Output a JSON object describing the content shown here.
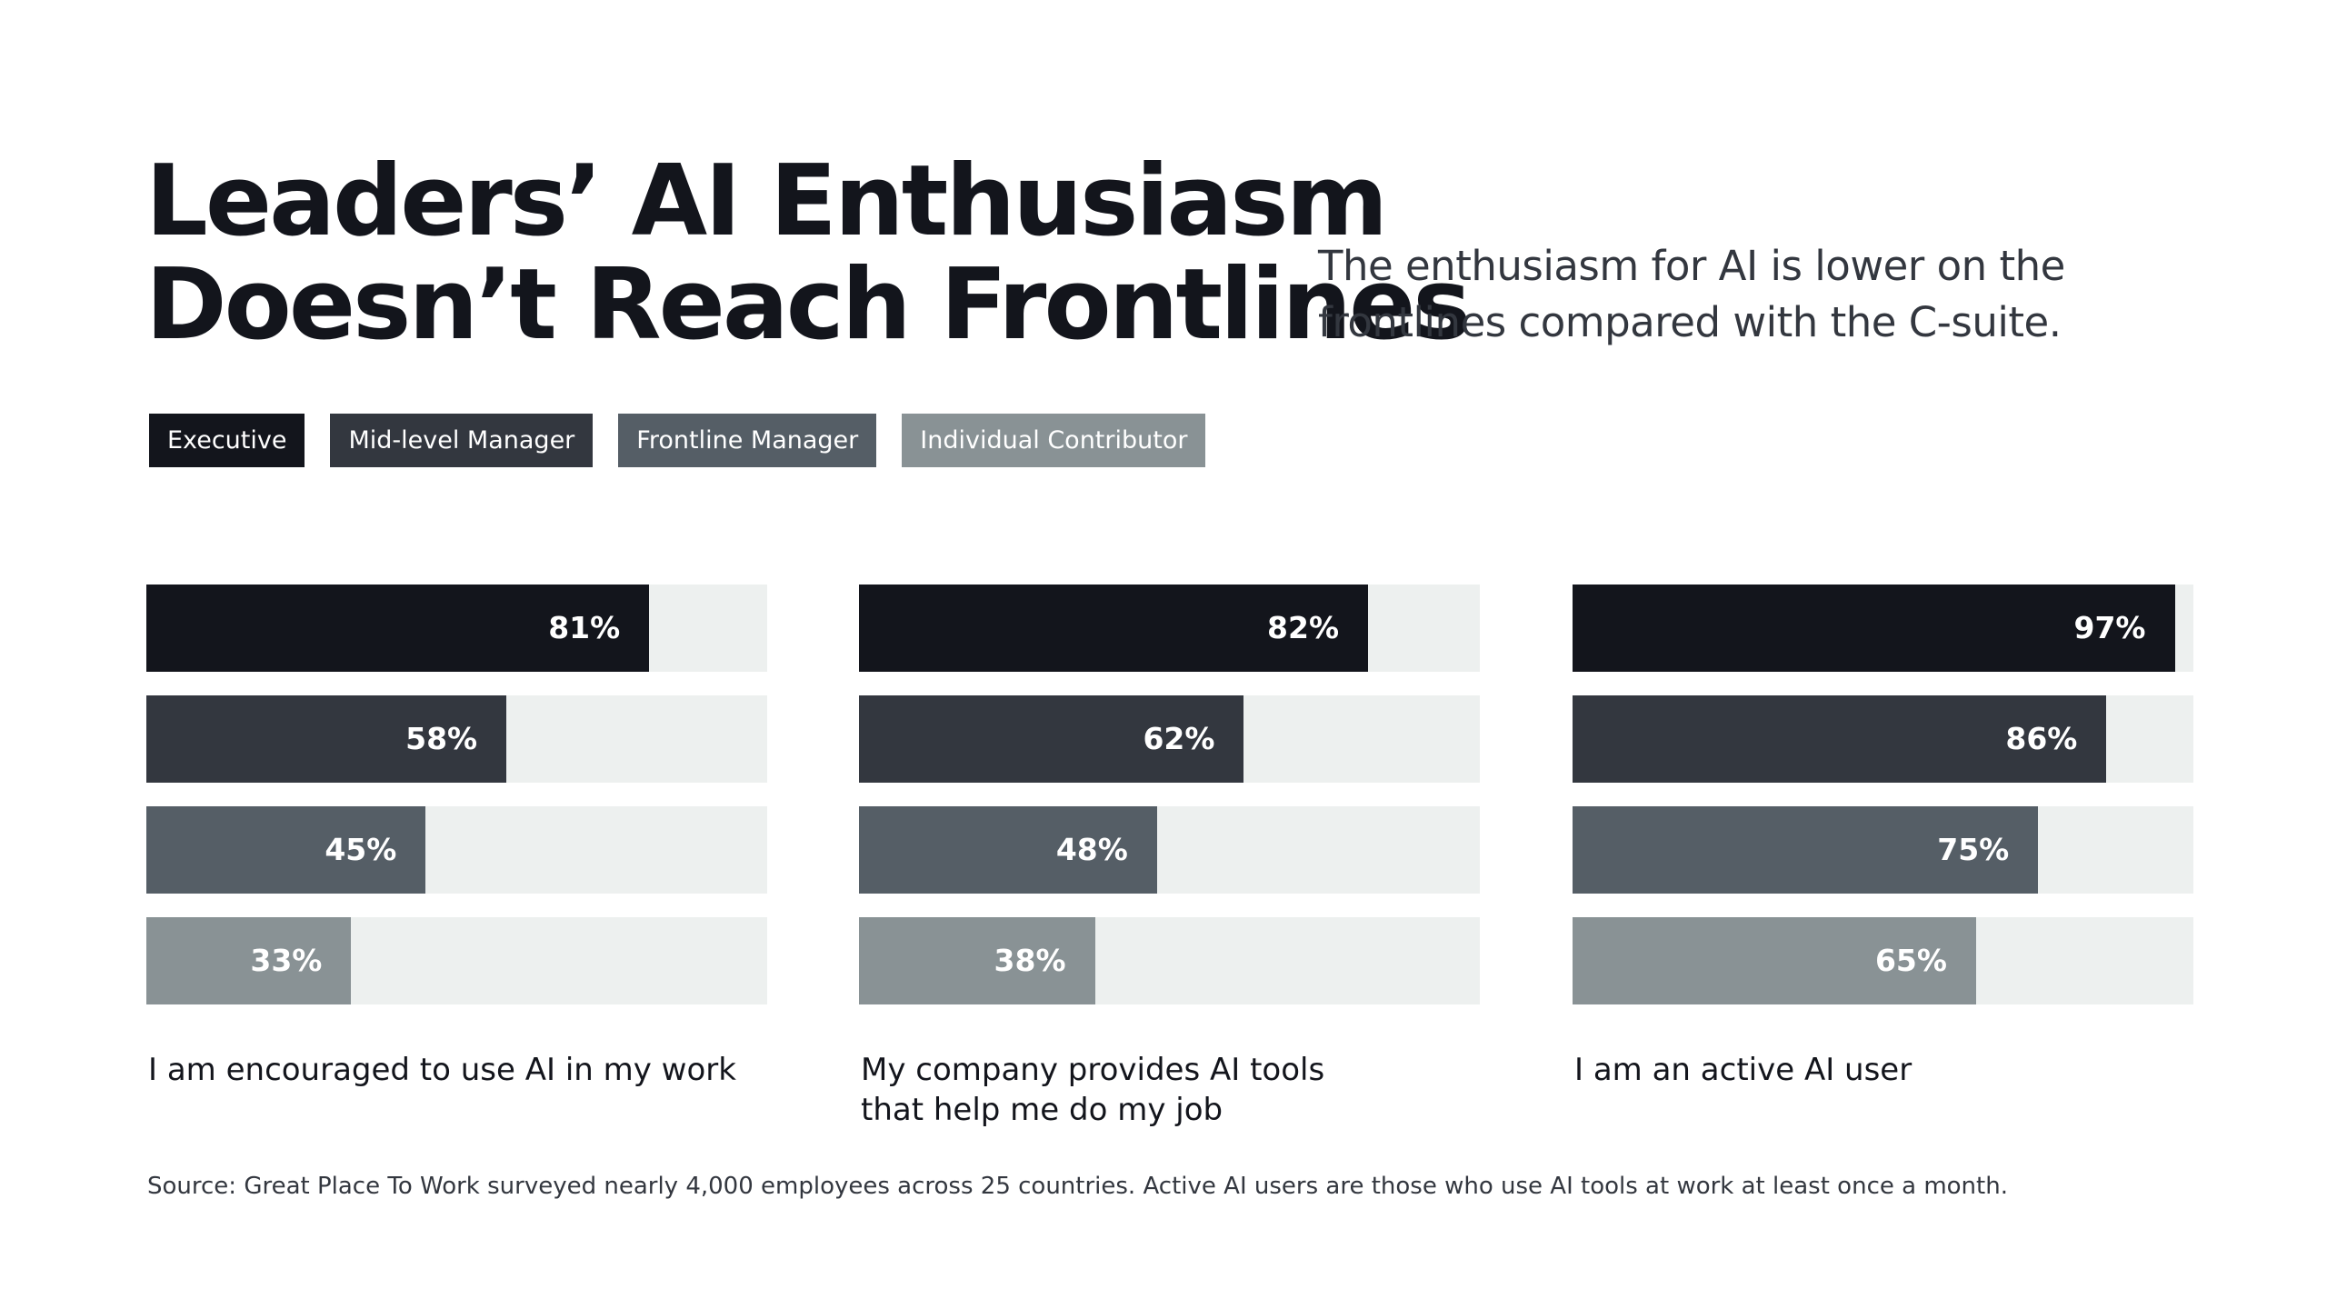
{
  "header": {
    "title_line1": "Leaders’ AI Enthusiasm",
    "title_line2": "Doesn’t Reach Frontlines",
    "subtitle_line1": "The enthusiasm for AI is lower on the",
    "subtitle_line2": "frontlines compared with the C-suite."
  },
  "chart_data": {
    "type": "bar",
    "orientation": "horizontal",
    "xlim": [
      0,
      100
    ],
    "legend_placement": "top-left",
    "track_color": "#edf0ef",
    "series": [
      {
        "name": "Executive",
        "color": "#13151c",
        "values": [
          81,
          82,
          97
        ],
        "labels": [
          "81%",
          "82%",
          "97%"
        ]
      },
      {
        "name": "Mid-level Manager",
        "color": "#33373f",
        "values": [
          58,
          62,
          86
        ],
        "labels": [
          "58%",
          "62%",
          "86%"
        ]
      },
      {
        "name": "Frontline Manager",
        "color": "#555e66",
        "values": [
          45,
          48,
          75
        ],
        "labels": [
          "45%",
          "48%",
          "75%"
        ]
      },
      {
        "name": "Individual Contributor",
        "color": "#899295",
        "values": [
          33,
          38,
          65
        ],
        "labels": [
          "33%",
          "38%",
          "65%"
        ]
      }
    ],
    "categories": [
      {
        "line1": "I am encouraged to use AI in my work",
        "line2": ""
      },
      {
        "line1": "My company provides AI tools",
        "line2": "that help me do my job"
      },
      {
        "line1": "I am an active AI user",
        "line2": ""
      }
    ]
  },
  "footer": {
    "source": "Source: Great Place To Work surveyed nearly 4,000 employees across 25 countries. Active AI users are those who use AI tools at work at least once a month."
  }
}
